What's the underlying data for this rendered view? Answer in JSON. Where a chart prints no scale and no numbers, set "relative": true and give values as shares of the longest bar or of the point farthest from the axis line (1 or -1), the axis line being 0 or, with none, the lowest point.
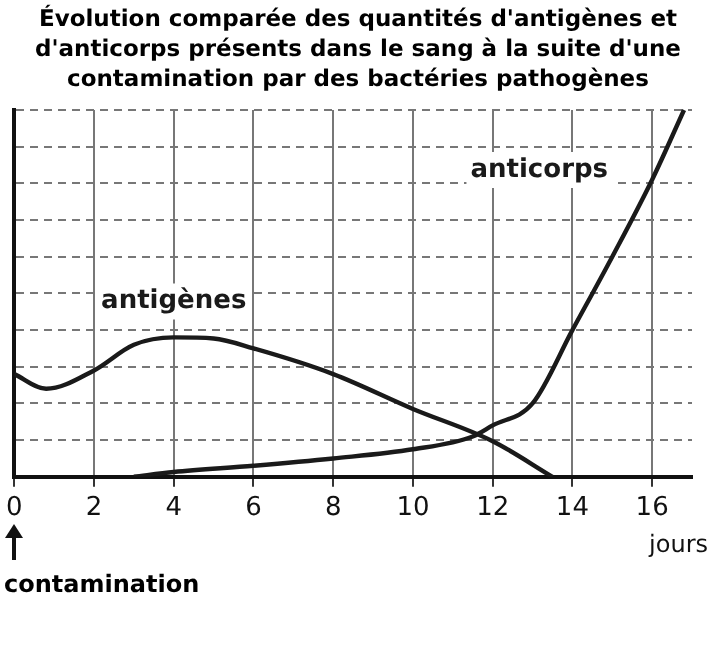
{
  "chart_data": {
    "type": "line",
    "title": "Évolution comparée des quantités d'antigènes et d'anticorps présents dans le sang à la suite d'une contamination par des bactéries pathogènes",
    "xlabel": "jours",
    "relative": true,
    "xlim": [
      0,
      17
    ],
    "xticks": [
      0,
      2,
      4,
      6,
      8,
      10,
      12,
      14,
      16
    ],
    "grid": true,
    "legend": false,
    "marker": "none",
    "annotations": [
      "contamination"
    ],
    "series": [
      {
        "name": "antigènes",
        "color": "#1a1a1a",
        "x": [
          0,
          0.8,
          2,
          3,
          4,
          5,
          6,
          8,
          10,
          12,
          13.5
        ],
        "values": [
          0.28,
          0.24,
          0.29,
          0.36,
          0.38,
          0.377,
          0.35,
          0.28,
          0.185,
          0.097,
          0
        ]
      },
      {
        "name": "anticorps",
        "color": "#1a1a1a",
        "x": [
          3,
          4,
          6,
          8,
          10,
          11.5,
          12,
          13,
          14,
          15,
          16,
          16.8
        ],
        "values": [
          0,
          0.013,
          0.03,
          0.05,
          0.075,
          0.11,
          0.14,
          0.2,
          0.4,
          0.6,
          0.81,
          1
        ]
      }
    ]
  }
}
